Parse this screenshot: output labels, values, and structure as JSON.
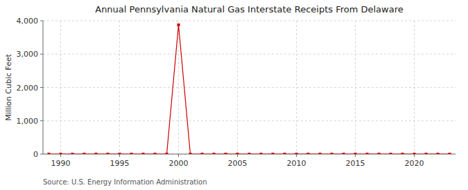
{
  "chart_data": {
    "type": "line",
    "title": "Annual Pennsylvania Natural Gas Interstate Receipts From Delaware",
    "ylabel": "Million Cubic Feet",
    "source": "Source: U.S. Energy Information Administration",
    "color": "#cc0000",
    "marker": "square",
    "grid": true,
    "xlim": [
      1988.5,
      2023.5
    ],
    "ylim": [
      0,
      4000
    ],
    "xticks": [
      1990,
      1995,
      2000,
      2005,
      2010,
      2015,
      2020
    ],
    "yticks": [
      0,
      {
        "value": 1000,
        "label": "1,000"
      },
      {
        "value": 2000,
        "label": "2,000"
      },
      {
        "value": 3000,
        "label": "3,000"
      },
      {
        "value": 4000,
        "label": "4,000"
      }
    ],
    "x": [
      1989,
      1990,
      1991,
      1992,
      1993,
      1994,
      1995,
      1996,
      1997,
      1998,
      1999,
      2000,
      2001,
      2002,
      2003,
      2004,
      2005,
      2006,
      2007,
      2008,
      2009,
      2010,
      2011,
      2012,
      2013,
      2014,
      2015,
      2016,
      2017,
      2018,
      2019,
      2020,
      2021,
      2022,
      2023
    ],
    "values": [
      0,
      0,
      0,
      0,
      0,
      0,
      0,
      0,
      0,
      0,
      0,
      3876,
      0,
      0,
      0,
      0,
      0,
      0,
      0,
      0,
      0,
      0,
      0,
      0,
      0,
      0,
      0,
      0,
      0,
      0,
      0,
      0,
      0,
      0,
      0
    ]
  }
}
